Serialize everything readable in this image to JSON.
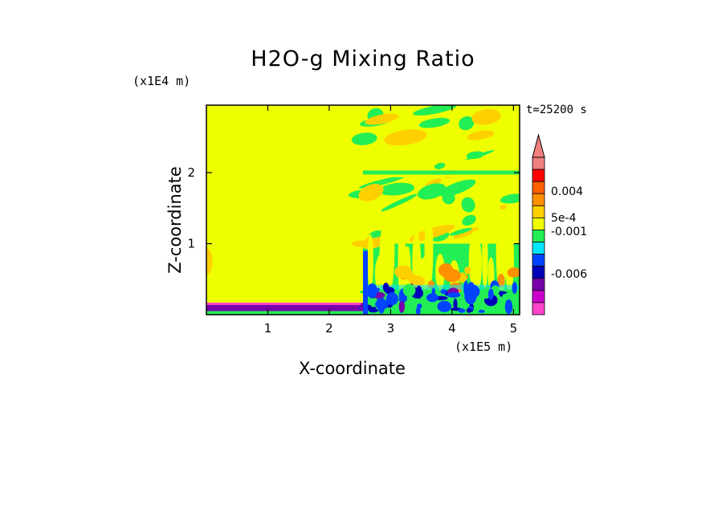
{
  "chart_data": {
    "type": "heatmap",
    "title": "H2O-g Mixing Ratio",
    "xlabel": "X-coordinate",
    "ylabel": "Z-coordinate",
    "x_unit": "(x1E5 m)",
    "z_unit": "(x1E4 m)",
    "time_label": "t=25200 s",
    "xlim": [
      0,
      5.1
    ],
    "ylim": [
      0,
      2.95
    ],
    "x_ticks": [
      1,
      2,
      3,
      4,
      5
    ],
    "x_tick_labels": [
      "1",
      "2",
      "3",
      "4",
      "5"
    ],
    "y_ticks": [
      1,
      2
    ],
    "y_tick_labels": [
      "1",
      "2"
    ],
    "colorbar": {
      "labels": [
        "0.004",
        "5e-4",
        "-0.001",
        "-0.006"
      ],
      "colors": [
        "#f08080",
        "#ff0000",
        "#ff6000",
        "#ff9000",
        "#ffd000",
        "#eeff00",
        "#22ee55",
        "#00e5ff",
        "#0044ff",
        "#0000bb",
        "#7700aa",
        "#cc00cc",
        "#ff44cc"
      ],
      "extend": "max"
    },
    "regions": [
      {
        "name": "left-uniform",
        "x": [
          0,
          2.55
        ],
        "z": [
          0.15,
          2.95
        ],
        "color": "#eeff00"
      },
      {
        "name": "left-surface-layer",
        "x": [
          0,
          2.55
        ],
        "z": [
          0.05,
          0.15
        ],
        "color": "#7700aa"
      },
      {
        "name": "right-turbulent-lower",
        "x": [
          2.55,
          5.1
        ],
        "z": [
          0,
          1.0
        ],
        "color": "#22ee55"
      },
      {
        "name": "right-upper",
        "x": [
          2.55,
          5.1
        ],
        "z": [
          1.0,
          2.95
        ],
        "color": "#eeff00"
      }
    ]
  }
}
